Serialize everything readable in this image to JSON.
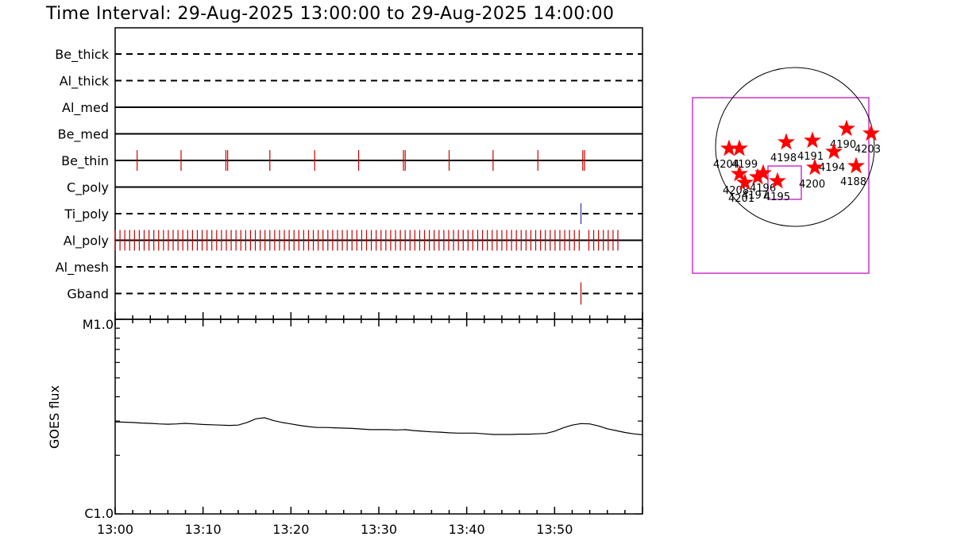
{
  "title": "Time Interval: 29-Aug-2025 13:00:00 to 29-Aug-2025 14:00:00",
  "chart_data": [
    {
      "type": "event-timeline",
      "x_domain_minutes": [
        0,
        60
      ],
      "channels": [
        {
          "name": "Be_thick",
          "style": "dashed",
          "events": []
        },
        {
          "name": "Al_thick",
          "style": "dashed",
          "events": []
        },
        {
          "name": "Al_med",
          "style": "solid",
          "events": []
        },
        {
          "name": "Be_med",
          "style": "solid",
          "events": []
        },
        {
          "name": "Be_thin",
          "style": "solid",
          "event_color": "#cc0000",
          "events": [
            2.5,
            7.5,
            12.6,
            12.8,
            17.6,
            22.7,
            27.7,
            32.8,
            33.0,
            38.0,
            43.0,
            48.1,
            53.2,
            53.4
          ]
        },
        {
          "name": "C_poly",
          "style": "solid",
          "events": []
        },
        {
          "name": "Ti_poly",
          "style": "dashed",
          "event_color": "#3333aa",
          "events": [
            53.0
          ]
        },
        {
          "name": "Al_poly",
          "style": "solid",
          "event_color": "#cc0000",
          "event_range": [
            0.0,
            57.6
          ],
          "event_spacing": 0.55,
          "gap_after": 53.1
        },
        {
          "name": "Al_mesh",
          "style": "dashed",
          "events": []
        },
        {
          "name": "Gband",
          "style": "dashed",
          "event_color": "#cc0000",
          "events": [
            53.0
          ]
        }
      ]
    },
    {
      "type": "line",
      "ylabel": "GOES flux",
      "y_tick_labels": [
        "M1.0",
        "C1.0"
      ],
      "y_scale": "log",
      "x_tick_labels": [
        "13:00",
        "13:10",
        "13:20",
        "13:30",
        "13:40",
        "13:50"
      ],
      "x_minutes": [
        0,
        1,
        2,
        3,
        4,
        5,
        6,
        7,
        8,
        9,
        10,
        11,
        12,
        13,
        14,
        15,
        16,
        17,
        18,
        19,
        20,
        21,
        22,
        23,
        24,
        25,
        26,
        27,
        28,
        29,
        30,
        31,
        32,
        33,
        34,
        35,
        36,
        37,
        38,
        39,
        40,
        41,
        42,
        43,
        44,
        45,
        46,
        47,
        48,
        49,
        50,
        51,
        52,
        53,
        54,
        55,
        56,
        57,
        58,
        59,
        60
      ],
      "y_flux": [
        2.97,
        2.96,
        2.95,
        2.93,
        2.92,
        2.9,
        2.89,
        2.9,
        2.92,
        2.9,
        2.88,
        2.87,
        2.86,
        2.85,
        2.86,
        2.95,
        3.08,
        3.12,
        3.02,
        2.95,
        2.9,
        2.85,
        2.81,
        2.78,
        2.78,
        2.77,
        2.76,
        2.75,
        2.73,
        2.71,
        2.71,
        2.71,
        2.7,
        2.71,
        2.68,
        2.66,
        2.64,
        2.63,
        2.61,
        2.6,
        2.6,
        2.6,
        2.58,
        2.56,
        2.56,
        2.56,
        2.57,
        2.57,
        2.58,
        2.59,
        2.66,
        2.77,
        2.86,
        2.91,
        2.9,
        2.83,
        2.74,
        2.68,
        2.62,
        2.58,
        2.55
      ]
    },
    {
      "type": "map",
      "markers": [
        {
          "label": "4204",
          "color": "#ff0000"
        },
        {
          "label": "4199",
          "color": "#ff0000"
        },
        {
          "label": "4198",
          "color": "#ff0000"
        },
        {
          "label": "4191",
          "color": "#ff0000"
        },
        {
          "label": "4190",
          "color": "#ff0000"
        },
        {
          "label": "4203",
          "color": "#ff0000"
        },
        {
          "label": "4194",
          "color": "#ff0000"
        },
        {
          "label": "4200",
          "color": "#ff0000"
        },
        {
          "label": "4188",
          "color": "#ff0000"
        },
        {
          "label": "4208",
          "color": "#ff0000"
        },
        {
          "label": "4201",
          "color": "#ff0000"
        },
        {
          "label": "4197",
          "color": "#ff0000"
        },
        {
          "label": "4196",
          "color": "#ff0000"
        },
        {
          "label": "4195",
          "color": "#ff0000"
        }
      ],
      "box_color": "#cc33cc"
    }
  ]
}
